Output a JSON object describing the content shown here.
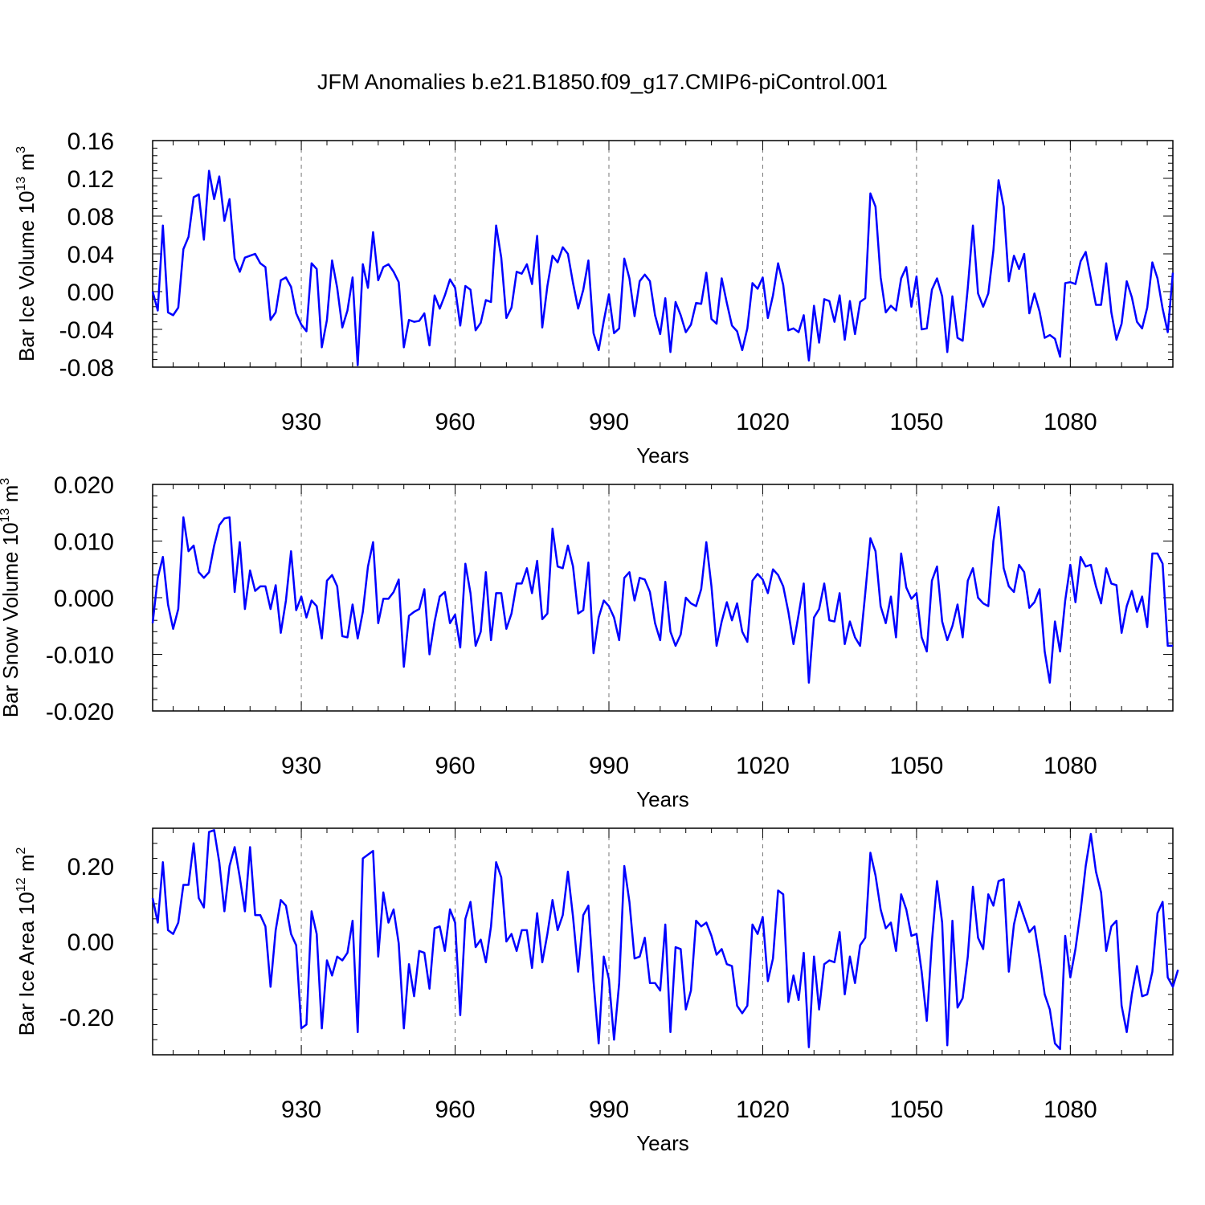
{
  "chart_data": [
    {
      "type": "line",
      "title": "JFM Anomalies b.e21.B1850.f09_g17.CMIP6-piControl.001",
      "ylabel": "Bar Ice Volume",
      "yunit": {
        "base": "10",
        "exp": "13",
        "unit": "m",
        "unit_exp": "3"
      },
      "xlabel": "Years",
      "xlim": [
        901,
        1100
      ],
      "ylim": [
        -0.08,
        0.16
      ],
      "yticks": [
        -0.08,
        -0.04,
        0.0,
        0.04,
        0.08,
        0.12,
        0.16
      ],
      "ytick_labels": [
        "-0.08",
        "-0.04",
        "0.00",
        "0.04",
        "0.08",
        "0.12",
        "0.16"
      ],
      "xticks": [
        930,
        960,
        990,
        1020,
        1050,
        1080
      ],
      "xtick_labels": [
        "930",
        "960",
        "990",
        "1020",
        "1050",
        "1080"
      ],
      "grid": "vertical dashed at major x ticks",
      "series": [
        {
          "name": "Bar Ice Volume",
          "color": "#0000ff",
          "x_start": 901,
          "values": [
            0.0,
            -0.02,
            0.07,
            -0.022,
            -0.025,
            -0.017,
            0.045,
            0.058,
            0.1,
            0.103,
            0.055,
            0.128,
            0.098,
            0.122,
            0.075,
            0.098,
            0.035,
            0.021,
            0.036,
            0.038,
            0.04,
            0.03,
            0.026,
            -0.03,
            -0.022,
            0.012,
            0.015,
            0.005,
            -0.023,
            -0.035,
            -0.042,
            0.03,
            0.024,
            -0.059,
            -0.03,
            0.033,
            0.004,
            -0.038,
            -0.02,
            0.015,
            -0.078,
            0.029,
            0.004,
            0.063,
            0.012,
            0.026,
            0.029,
            0.021,
            0.01,
            -0.059,
            -0.03,
            -0.032,
            -0.031,
            -0.023,
            -0.057,
            -0.004,
            -0.018,
            -0.004,
            0.013,
            0.004,
            -0.036,
            0.006,
            0.002,
            -0.041,
            -0.033,
            -0.009,
            -0.011,
            0.07,
            0.036,
            -0.028,
            -0.017,
            0.021,
            0.019,
            0.029,
            0.008,
            0.059,
            -0.038,
            0.006,
            0.038,
            0.031,
            0.047,
            0.04,
            0.009,
            -0.018,
            0.002,
            0.033,
            -0.044,
            -0.062,
            -0.031,
            -0.003,
            -0.044,
            -0.039,
            0.035,
            0.014,
            -0.026,
            0.011,
            0.018,
            0.011,
            -0.025,
            -0.045,
            -0.007,
            -0.064,
            -0.011,
            -0.025,
            -0.043,
            -0.035,
            -0.012,
            -0.013,
            0.02,
            -0.029,
            -0.034,
            0.014,
            -0.012,
            -0.036,
            -0.042,
            -0.062,
            -0.039,
            0.009,
            0.003,
            0.015,
            -0.028,
            -0.004,
            0.03,
            0.007,
            -0.041,
            -0.039,
            -0.043,
            -0.025,
            -0.073,
            -0.015,
            -0.054,
            -0.008,
            -0.01,
            -0.032,
            -0.004,
            -0.051,
            -0.01,
            -0.045,
            -0.011,
            -0.007,
            0.104,
            0.09,
            0.015,
            -0.022,
            -0.015,
            -0.02,
            0.014,
            0.026,
            -0.016,
            0.016,
            -0.04,
            -0.039,
            0.002,
            0.014,
            -0.005,
            -0.064,
            -0.005,
            -0.049,
            -0.052,
            0.004,
            0.07,
            -0.002,
            -0.016,
            -0.002,
            0.044,
            0.118,
            0.09,
            0.011,
            0.038,
            0.024,
            0.04,
            -0.023,
            -0.002,
            -0.021,
            -0.049,
            -0.046,
            -0.05,
            -0.069,
            0.009,
            0.01,
            0.008,
            0.032,
            0.042,
            0.014,
            -0.014,
            -0.014,
            0.03,
            -0.022,
            -0.051,
            -0.034,
            0.011,
            -0.006,
            -0.032,
            -0.039,
            -0.017,
            0.031,
            0.014,
            -0.018,
            -0.043,
            0.02
          ]
        }
      ]
    },
    {
      "type": "line",
      "title": "",
      "ylabel": "Bar Snow Volume",
      "yunit": {
        "base": "10",
        "exp": "13",
        "unit": "m",
        "unit_exp": "3"
      },
      "xlabel": "Years",
      "xlim": [
        901,
        1100
      ],
      "ylim": [
        -0.02,
        0.02
      ],
      "yticks": [
        -0.02,
        -0.01,
        0.0,
        0.01,
        0.02
      ],
      "ytick_labels": [
        "-0.020",
        "-0.010",
        "0.000",
        "0.010",
        "0.020"
      ],
      "xticks": [
        930,
        960,
        990,
        1020,
        1050,
        1080
      ],
      "xtick_labels": [
        "930",
        "960",
        "990",
        "1020",
        "1050",
        "1080"
      ],
      "grid": "vertical dashed at major x ticks",
      "series": [
        {
          "name": "Bar Snow Volume",
          "color": "#0000ff",
          "x_start": 901,
          "values": [
            -0.0045,
            0.0035,
            0.0072,
            -0.0012,
            -0.0055,
            -0.002,
            0.0142,
            0.0082,
            0.0092,
            0.0045,
            0.0035,
            0.0045,
            0.0092,
            0.0128,
            0.014,
            0.0142,
            0.001,
            0.0098,
            -0.002,
            0.0048,
            0.0012,
            0.002,
            0.002,
            -0.002,
            0.0022,
            -0.0062,
            -0.0005,
            0.0082,
            -0.0022,
            0.0002,
            -0.0035,
            -0.0005,
            -0.0015,
            -0.0072,
            0.003,
            0.004,
            0.002,
            -0.0068,
            -0.007,
            -0.0012,
            -0.0072,
            -0.0025,
            0.0055,
            0.0098,
            -0.0045,
            -0.0002,
            -0.0002,
            0.001,
            0.0032,
            -0.0122,
            -0.0032,
            -0.0025,
            -0.002,
            0.0015,
            -0.01,
            -0.0042,
            0.0002,
            0.001,
            -0.0045,
            -0.003,
            -0.0088,
            0.006,
            0.0008,
            -0.0085,
            -0.006,
            0.0045,
            -0.0075,
            0.0008,
            0.0008,
            -0.0055,
            -0.0028,
            0.0025,
            0.0025,
            0.0052,
            0.0008,
            0.0065,
            -0.0038,
            -0.0028,
            0.0122,
            0.0055,
            0.0052,
            0.0092,
            0.0055,
            -0.0028,
            -0.0022,
            0.0062,
            -0.0098,
            -0.0035,
            -0.0005,
            -0.0015,
            -0.0035,
            -0.0075,
            0.0035,
            0.0045,
            -0.0005,
            0.0035,
            0.0032,
            0.001,
            -0.0045,
            -0.0075,
            0.0028,
            -0.006,
            -0.0085,
            -0.0065,
            0.0,
            -0.001,
            -0.0015,
            0.0015,
            0.0098,
            0.002,
            -0.0085,
            -0.0042,
            -0.0008,
            -0.004,
            -0.001,
            -0.006,
            -0.0078,
            0.003,
            0.0042,
            0.0032,
            0.0008,
            0.005,
            0.004,
            0.002,
            -0.0025,
            -0.0082,
            -0.003,
            0.0025,
            -0.015,
            -0.0035,
            -0.002,
            0.0025,
            -0.004,
            -0.0042,
            0.0008,
            -0.0082,
            -0.0042,
            -0.007,
            -0.0085,
            0.0008,
            0.0105,
            0.0082,
            -0.0015,
            -0.0045,
            0.0002,
            -0.007,
            0.0078,
            0.0018,
            -0.0002,
            0.0008,
            -0.007,
            -0.0095,
            0.003,
            0.0055,
            -0.0042,
            -0.0075,
            -0.005,
            -0.0012,
            -0.007,
            0.003,
            0.0052,
            0.0,
            -0.001,
            -0.0015,
            0.01,
            0.016,
            0.0052,
            0.002,
            0.001,
            0.0058,
            0.0045,
            -0.0018,
            -0.0008,
            0.0015,
            -0.0095,
            -0.015,
            -0.0042,
            -0.0095,
            -0.0005,
            0.0058,
            -0.0008,
            0.0072,
            0.0055,
            0.0058,
            0.002,
            -0.001,
            0.0052,
            0.0025,
            0.0022,
            -0.0062,
            -0.0015,
            0.0012,
            -0.0025,
            0.0002,
            -0.0052,
            0.0078,
            0.0078,
            0.006,
            -0.0085,
            -0.0085
          ]
        }
      ]
    },
    {
      "type": "line",
      "title": "",
      "ylabel": "Bar Ice Area",
      "yunit": {
        "base": "10",
        "exp": "12",
        "unit": "m",
        "unit_exp": "2"
      },
      "xlabel": "Years",
      "xlim": [
        901,
        1100
      ],
      "ylim": [
        -0.3,
        0.3
      ],
      "yticks": [
        -0.2,
        0.0,
        0.2
      ],
      "ytick_labels": [
        "-0.20",
        "0.00",
        "0.20"
      ],
      "xticks": [
        930,
        960,
        990,
        1020,
        1050,
        1080
      ],
      "xtick_labels": [
        "930",
        "960",
        "990",
        "1020",
        "1050",
        "1080"
      ],
      "grid": "vertical dashed at major x ticks",
      "series": [
        {
          "name": "Bar Ice Area",
          "color": "#0000ff",
          "x_start": 901,
          "values": [
            0.115,
            0.05,
            0.21,
            0.03,
            0.02,
            0.05,
            0.15,
            0.15,
            0.26,
            0.115,
            0.09,
            0.29,
            0.295,
            0.21,
            0.08,
            0.2,
            0.25,
            0.17,
            0.08,
            0.25,
            0.07,
            0.07,
            0.04,
            -0.12,
            0.03,
            0.11,
            0.095,
            0.02,
            -0.01,
            -0.23,
            -0.22,
            0.08,
            0.02,
            -0.23,
            -0.05,
            -0.09,
            -0.04,
            -0.05,
            -0.03,
            0.055,
            -0.24,
            0.22,
            0.23,
            0.24,
            -0.04,
            0.13,
            0.05,
            0.085,
            -0.005,
            -0.23,
            -0.06,
            -0.145,
            -0.025,
            -0.03,
            -0.125,
            0.035,
            0.04,
            -0.025,
            0.085,
            0.05,
            -0.195,
            0.06,
            0.105,
            -0.015,
            0.005,
            -0.055,
            0.04,
            0.21,
            0.17,
            0.0,
            0.02,
            -0.025,
            0.03,
            0.03,
            -0.07,
            0.075,
            -0.055,
            0.02,
            0.11,
            0.03,
            0.07,
            0.185,
            0.065,
            -0.08,
            0.07,
            0.095,
            -0.105,
            -0.27,
            -0.04,
            -0.1,
            -0.26,
            -0.11,
            0.2,
            0.105,
            -0.045,
            -0.04,
            0.01,
            -0.11,
            -0.11,
            -0.13,
            0.045,
            -0.24,
            -0.015,
            -0.02,
            -0.18,
            -0.13,
            0.055,
            0.04,
            0.05,
            0.015,
            -0.035,
            -0.02,
            -0.06,
            -0.065,
            -0.17,
            -0.19,
            -0.17,
            0.045,
            0.02,
            0.065,
            -0.105,
            -0.045,
            0.135,
            0.125,
            -0.16,
            -0.09,
            -0.155,
            -0.03,
            -0.28,
            -0.04,
            -0.18,
            -0.06,
            -0.05,
            -0.055,
            0.025,
            -0.14,
            -0.04,
            -0.11,
            -0.01,
            0.01,
            0.235,
            0.175,
            0.085,
            0.035,
            0.05,
            -0.025,
            0.125,
            0.085,
            0.015,
            0.02,
            -0.08,
            -0.21,
            0.0,
            0.16,
            0.05,
            -0.275,
            0.055,
            -0.175,
            -0.15,
            -0.04,
            0.145,
            0.01,
            -0.02,
            0.125,
            0.095,
            0.16,
            0.165,
            -0.08,
            0.045,
            0.105,
            0.065,
            0.025,
            0.04,
            -0.045,
            -0.14,
            -0.18,
            -0.27,
            -0.285,
            0.015,
            -0.095,
            -0.02,
            0.08,
            0.2,
            0.285,
            0.185,
            0.13,
            -0.025,
            0.04,
            0.055,
            -0.17,
            -0.24,
            -0.14,
            -0.065,
            -0.145,
            -0.14,
            -0.08,
            0.075,
            0.105,
            -0.095,
            -0.12,
            -0.075
          ]
        }
      ]
    }
  ]
}
